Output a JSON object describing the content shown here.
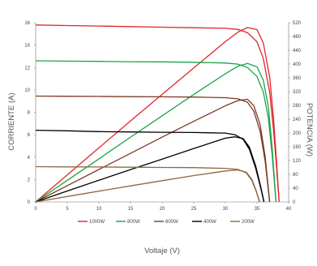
{
  "chart_data": {
    "type": "line",
    "xlabel": "Voltaje (V)",
    "ylabel_left": "CORRIENTE (A)",
    "ylabel_right": "POTENCIA (W)",
    "xlim": [
      0,
      40
    ],
    "ylim_left": [
      0,
      16
    ],
    "ylim_right": [
      0,
      520
    ],
    "x_ticks": [
      "0",
      "5",
      "10",
      "15",
      "20",
      "25",
      "30",
      "35",
      "40"
    ],
    "y_left_ticks": [
      "0",
      "2",
      "4",
      "6",
      "8",
      "10",
      "12",
      "14",
      "16"
    ],
    "y_right_ticks": [
      "0",
      "40",
      "80",
      "120",
      "160",
      "200",
      "240",
      "280",
      "320",
      "360",
      "400",
      "440",
      "480",
      "520"
    ],
    "grid": false,
    "legend_position": "bottom",
    "series": [
      {
        "name": "1000W",
        "color": "#e0262b",
        "iv": [
          [
            0,
            15.8
          ],
          [
            5,
            15.75
          ],
          [
            10,
            15.7
          ],
          [
            15,
            15.65
          ],
          [
            20,
            15.6
          ],
          [
            25,
            15.55
          ],
          [
            30,
            15.5
          ],
          [
            32,
            15.4
          ],
          [
            33.5,
            15.1
          ],
          [
            35,
            14.3
          ],
          [
            36,
            12.8
          ],
          [
            37,
            9.8
          ],
          [
            37.6,
            6.5
          ],
          [
            38.1,
            3.0
          ],
          [
            38.5,
            0
          ]
        ],
        "pv": [
          [
            0,
            0
          ],
          [
            5,
            78.7
          ],
          [
            10,
            157
          ],
          [
            15,
            235
          ],
          [
            20,
            312
          ],
          [
            25,
            389
          ],
          [
            30,
            465
          ],
          [
            32,
            493
          ],
          [
            33.5,
            506
          ],
          [
            35,
            500
          ],
          [
            36,
            461
          ],
          [
            37,
            363
          ],
          [
            37.6,
            244
          ],
          [
            38.1,
            114
          ],
          [
            38.5,
            0
          ]
        ]
      },
      {
        "name": "800W",
        "color": "#1aa34a",
        "iv": [
          [
            0,
            12.6
          ],
          [
            5,
            12.57
          ],
          [
            10,
            12.55
          ],
          [
            15,
            12.52
          ],
          [
            20,
            12.5
          ],
          [
            25,
            12.47
          ],
          [
            30,
            12.4
          ],
          [
            32,
            12.3
          ],
          [
            33.5,
            12.0
          ],
          [
            35,
            11.2
          ],
          [
            36,
            9.8
          ],
          [
            36.8,
            7.5
          ],
          [
            37.4,
            4.2
          ],
          [
            38.0,
            0
          ]
        ],
        "pv": [
          [
            0,
            0
          ],
          [
            5,
            62.9
          ],
          [
            10,
            125
          ],
          [
            15,
            188
          ],
          [
            20,
            250
          ],
          [
            25,
            312
          ],
          [
            30,
            372
          ],
          [
            32,
            394
          ],
          [
            33.5,
            402
          ],
          [
            35,
            392
          ],
          [
            36,
            353
          ],
          [
            36.8,
            276
          ],
          [
            37.4,
            157
          ],
          [
            38.0,
            0
          ]
        ]
      },
      {
        "name": "600W",
        "color": "#7b3a22",
        "iv": [
          [
            0,
            9.45
          ],
          [
            5,
            9.43
          ],
          [
            10,
            9.42
          ],
          [
            15,
            9.4
          ],
          [
            20,
            9.38
          ],
          [
            25,
            9.36
          ],
          [
            30,
            9.3
          ],
          [
            32,
            9.2
          ],
          [
            33.5,
            8.9
          ],
          [
            34.5,
            8.1
          ],
          [
            35.5,
            6.3
          ],
          [
            36.3,
            3.6
          ],
          [
            37.0,
            0
          ]
        ],
        "pv": [
          [
            0,
            0
          ],
          [
            5,
            47.2
          ],
          [
            10,
            94.2
          ],
          [
            15,
            141
          ],
          [
            20,
            188
          ],
          [
            25,
            234
          ],
          [
            30,
            279
          ],
          [
            32,
            294
          ],
          [
            33.5,
            298
          ],
          [
            34.5,
            279
          ],
          [
            35.5,
            224
          ],
          [
            36.3,
            131
          ],
          [
            37.0,
            0
          ]
        ]
      },
      {
        "name": "400W",
        "color": "#000000",
        "iv": [
          [
            0,
            6.4
          ],
          [
            5,
            6.35
          ],
          [
            10,
            6.28
          ],
          [
            15,
            6.25
          ],
          [
            20,
            6.22
          ],
          [
            25,
            6.2
          ],
          [
            30,
            6.15
          ],
          [
            31.5,
            6.0
          ],
          [
            32.8,
            5.6
          ],
          [
            33.8,
            4.7
          ],
          [
            34.8,
            3.0
          ],
          [
            35.6,
            1.2
          ],
          [
            36.1,
            0
          ]
        ],
        "pv": [
          [
            0,
            0
          ],
          [
            5,
            31.8
          ],
          [
            10,
            62.8
          ],
          [
            15,
            93.8
          ],
          [
            20,
            124
          ],
          [
            25,
            155
          ],
          [
            30,
            185
          ],
          [
            31.5,
            189
          ],
          [
            32.8,
            184
          ],
          [
            33.8,
            159
          ],
          [
            34.8,
            104
          ],
          [
            35.6,
            42.7
          ],
          [
            36.1,
            0
          ]
        ]
      },
      {
        "name": "200W",
        "color": "#8c6a3c",
        "iv": [
          [
            0,
            3.15
          ],
          [
            5,
            3.13
          ],
          [
            10,
            3.12
          ],
          [
            15,
            3.1
          ],
          [
            20,
            3.08
          ],
          [
            25,
            3.06
          ],
          [
            30,
            3.0
          ],
          [
            32,
            2.9
          ],
          [
            33.3,
            2.6
          ],
          [
            34.2,
            1.9
          ],
          [
            34.9,
            0.9
          ],
          [
            35.4,
            0
          ]
        ],
        "pv": [
          [
            0,
            0
          ],
          [
            5,
            15.7
          ],
          [
            10,
            31.2
          ],
          [
            15,
            46.5
          ],
          [
            20,
            61.6
          ],
          [
            25,
            76.5
          ],
          [
            30,
            90
          ],
          [
            32,
            92.8
          ],
          [
            33.3,
            86.6
          ],
          [
            34.2,
            65
          ],
          [
            34.9,
            31.4
          ],
          [
            35.4,
            0
          ]
        ]
      }
    ]
  }
}
